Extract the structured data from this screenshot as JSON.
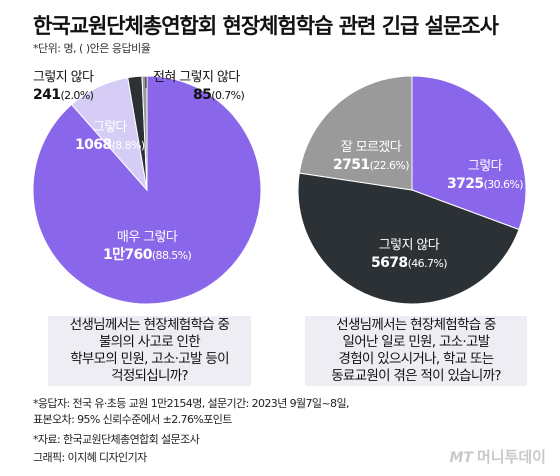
{
  "header": {
    "title": "한국교원단체총연합회 현장체험학습 관련 긴급 설문조사",
    "unit_note": "*단위: 명, ( )안은 응답비율"
  },
  "chart_data": [
    {
      "type": "pie",
      "question": "선생님께서는 현장체험학습 중\n불의의 사고로 인한\n학부모의 민원, 고소·고발 등이\n걱정되십니까?",
      "slices": [
        {
          "label": "매우 그렇다",
          "value_text": "1만760",
          "pct_text": "(88.5%)",
          "value": 10760,
          "pct": 88.5,
          "color": "#8a67ea"
        },
        {
          "label": "그렇다",
          "value_text": "1068",
          "pct_text": "(8.8%)",
          "value": 1068,
          "pct": 8.8,
          "color": "#d6cdf7"
        },
        {
          "label": "그렇지 않다",
          "value_text": "241",
          "pct_text": "(2.0%)",
          "value": 241,
          "pct": 2.0,
          "color": "#2c3135"
        },
        {
          "label": "전혀 그렇지 않다",
          "value_text": "85",
          "pct_text": "(0.7%)",
          "value": 85,
          "pct": 0.7,
          "color": "#9a9a9a"
        }
      ]
    },
    {
      "type": "pie",
      "question": "선생님께서는 현장체험학습 중\n일어난 일로 민원, 고소·고발\n경험이 있으시거나, 학교 또는\n동료교원이 겪은 적이 있습니까?",
      "slices": [
        {
          "label": "그렇다",
          "value_text": "3725",
          "pct_text": "(30.6%)",
          "value": 3725,
          "pct": 30.6,
          "color": "#8a67ea"
        },
        {
          "label": "그렇지 않다",
          "value_text": "5678",
          "pct_text": "(46.7%)",
          "value": 5678,
          "pct": 46.7,
          "color": "#2c3135"
        },
        {
          "label": "잘 모르겠다",
          "value_text": "2751",
          "pct_text": "(22.6%)",
          "value": 2751,
          "pct": 22.6,
          "color": "#9a9a9a"
        }
      ]
    }
  ],
  "footer": {
    "respondents": "*응답자: 전국 유·초등 교원 1만2154명, 설문기간: 2023년 9월7일~8일,",
    "margin": "표본오차: 95% 신뢰수준에서 ±2.76%포인트",
    "source": "*자료: 한국교원단체총연합회 설문조사",
    "graphic": "그래픽: 이지혜 디자인기자",
    "logo_mark": "MT",
    "logo_text": "머니투데이"
  }
}
